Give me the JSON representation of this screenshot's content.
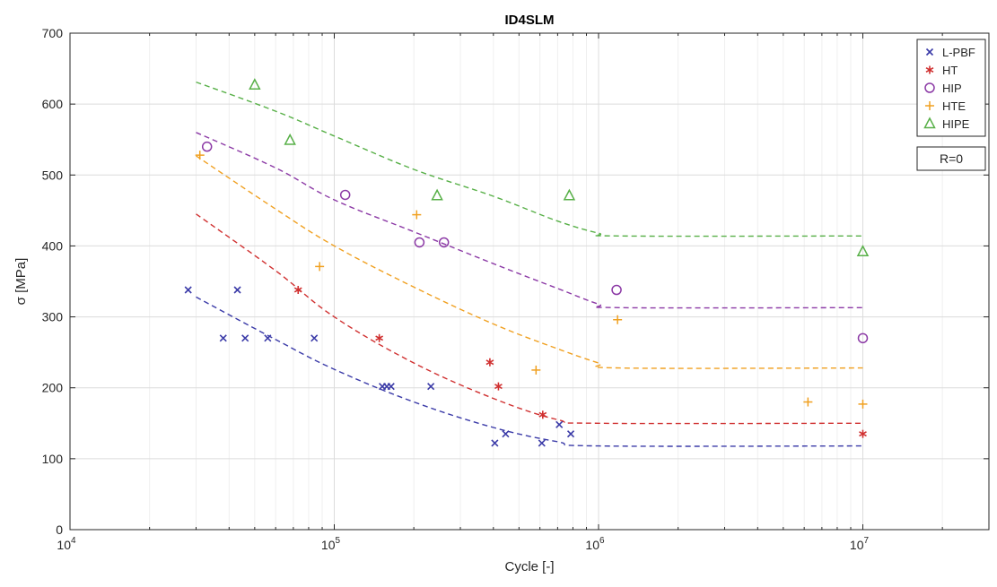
{
  "chart_data": {
    "type": "scatter",
    "title": "ID4SLM",
    "xlabel": "Cycle [-]",
    "ylabel": "σ [MPa]",
    "x_scale": "log",
    "xlim": [
      10000,
      30000000
    ],
    "ylim": [
      0,
      700
    ],
    "grid": true,
    "legend_position": "top-right",
    "x_tick_labels": [
      {
        "value": 10000,
        "base": "10",
        "exp": "4"
      },
      {
        "value": 100000,
        "base": "10",
        "exp": "5"
      },
      {
        "value": 1000000,
        "base": "10",
        "exp": "6"
      },
      {
        "value": 10000000,
        "base": "10",
        "exp": "7"
      }
    ],
    "y_ticks": [
      0,
      100,
      200,
      300,
      400,
      500,
      600,
      700
    ],
    "annotation": "R=0",
    "series": [
      {
        "name": "L-PBF",
        "marker": "x",
        "color": "#3b3ba8",
        "points": [
          [
            28000,
            338
          ],
          [
            38000,
            270
          ],
          [
            43000,
            338
          ],
          [
            46000,
            270
          ],
          [
            56000,
            270
          ],
          [
            84000,
            270
          ],
          [
            152000,
            202
          ],
          [
            158000,
            202
          ],
          [
            164000,
            202
          ],
          [
            232000,
            202
          ],
          [
            405000,
            122
          ],
          [
            445000,
            135
          ],
          [
            610000,
            122
          ],
          [
            710000,
            148
          ],
          [
            785000,
            135
          ]
        ],
        "fit": [
          [
            30000,
            328
          ],
          [
            60000,
            268
          ],
          [
            100000,
            226
          ],
          [
            200000,
            180
          ],
          [
            400000,
            144
          ],
          [
            700000,
            124
          ],
          [
            1000000,
            118
          ],
          [
            10000000,
            118
          ]
        ]
      },
      {
        "name": "HT",
        "marker": "asterisk",
        "color": "#d03030",
        "points": [
          [
            73000,
            338
          ],
          [
            148000,
            270
          ],
          [
            388000,
            236
          ],
          [
            418000,
            202
          ],
          [
            615000,
            162
          ],
          [
            10000000,
            135
          ]
        ],
        "fit": [
          [
            30000,
            445
          ],
          [
            60000,
            365
          ],
          [
            100000,
            300
          ],
          [
            200000,
            235
          ],
          [
            400000,
            185
          ],
          [
            700000,
            155
          ],
          [
            1000000,
            150
          ],
          [
            10000000,
            150
          ]
        ]
      },
      {
        "name": "HIP",
        "marker": "circle",
        "color": "#8c3aa6",
        "points": [
          [
            33000,
            540
          ],
          [
            110000,
            472
          ],
          [
            210000,
            405
          ],
          [
            260000,
            405
          ],
          [
            1170000,
            338
          ],
          [
            10000000,
            270
          ]
        ],
        "fit": [
          [
            30000,
            560
          ],
          [
            60000,
            510
          ],
          [
            100000,
            465
          ],
          [
            200000,
            420
          ],
          [
            400000,
            375
          ],
          [
            700000,
            340
          ],
          [
            1000000,
            318
          ],
          [
            1200000,
            313
          ],
          [
            10000000,
            313
          ]
        ]
      },
      {
        "name": "HTE",
        "marker": "plus",
        "color": "#f0a020",
        "points": [
          [
            31000,
            528
          ],
          [
            88000,
            371
          ],
          [
            205000,
            444
          ],
          [
            580000,
            225
          ],
          [
            1180000,
            296
          ],
          [
            6200000,
            180
          ],
          [
            10000000,
            177
          ]
        ],
        "fit": [
          [
            30000,
            527
          ],
          [
            60000,
            452
          ],
          [
            100000,
            400
          ],
          [
            200000,
            342
          ],
          [
            400000,
            290
          ],
          [
            700000,
            255
          ],
          [
            1000000,
            235
          ],
          [
            1200000,
            228
          ],
          [
            10000000,
            228
          ]
        ]
      },
      {
        "name": "HIPE",
        "marker": "triangle",
        "color": "#58b048",
        "points": [
          [
            50000,
            627
          ],
          [
            68000,
            549
          ],
          [
            245000,
            471
          ],
          [
            775000,
            471
          ],
          [
            10000000,
            392
          ]
        ],
        "fit": [
          [
            30000,
            631
          ],
          [
            60000,
            590
          ],
          [
            100000,
            555
          ],
          [
            200000,
            508
          ],
          [
            400000,
            470
          ],
          [
            700000,
            435
          ],
          [
            1000000,
            418
          ],
          [
            1200000,
            414
          ],
          [
            10000000,
            414
          ]
        ]
      }
    ]
  }
}
